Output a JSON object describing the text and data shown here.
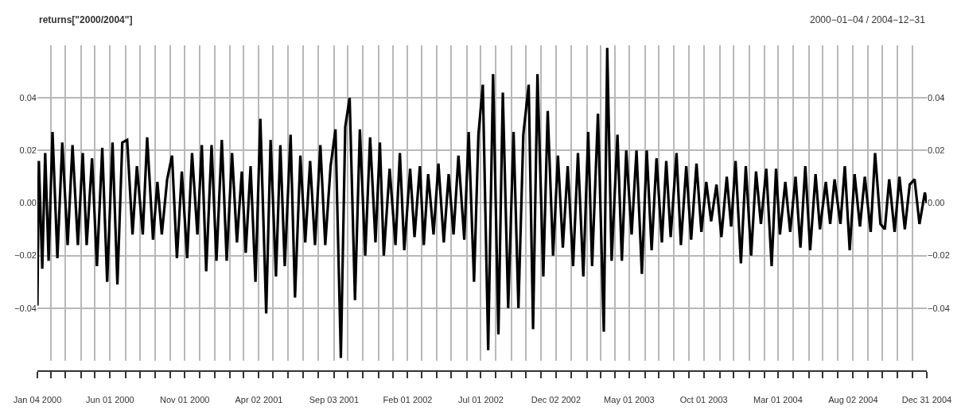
{
  "chart_data": {
    "type": "line",
    "title": "returns[\"2000/2004\"]",
    "subtitle": "2000−01−04 / 2004−12−31",
    "x": [
      "2000-01-04",
      "2000-01-07",
      "2000-01-14",
      "2000-01-20",
      "2000-01-27",
      "2000-02-04",
      "2000-02-14",
      "2000-02-24",
      "2000-03-06",
      "2000-03-16",
      "2000-03-27",
      "2000-04-06",
      "2000-04-14",
      "2000-04-25",
      "2000-05-05",
      "2000-05-16",
      "2000-05-26",
      "2000-06-06",
      "2000-06-16",
      "2000-06-26",
      "2000-07-06",
      "2000-07-17",
      "2000-07-26",
      "2000-08-07",
      "2000-08-16",
      "2000-08-28",
      "2000-09-06",
      "2000-09-15",
      "2000-09-26",
      "2000-10-06",
      "2000-10-16",
      "2000-10-26",
      "2000-11-06",
      "2000-11-16",
      "2000-11-27",
      "2000-12-06",
      "2000-12-15",
      "2000-12-26",
      "2001-01-05",
      "2001-01-16",
      "2001-01-26",
      "2001-02-06",
      "2001-02-16",
      "2001-02-26",
      "2001-03-06",
      "2001-03-16",
      "2001-03-26",
      "2001-04-05",
      "2001-04-17",
      "2001-04-26",
      "2001-05-07",
      "2001-05-16",
      "2001-05-25",
      "2001-06-06",
      "2001-06-15",
      "2001-06-26",
      "2001-07-06",
      "2001-07-16",
      "2001-07-26",
      "2001-08-06",
      "2001-08-16",
      "2001-08-27",
      "2001-09-06",
      "2001-09-17",
      "2001-09-26",
      "2001-10-05",
      "2001-10-16",
      "2001-10-26",
      "2001-11-06",
      "2001-11-16",
      "2001-11-27",
      "2001-12-06",
      "2001-12-14",
      "2001-12-26",
      "2002-01-07",
      "2002-01-16",
      "2002-01-25",
      "2002-02-06",
      "2002-02-15",
      "2002-02-26",
      "2002-03-06",
      "2002-03-15",
      "2002-03-26",
      "2002-04-05",
      "2002-04-16",
      "2002-04-26",
      "2002-05-06",
      "2002-05-16",
      "2002-05-28",
      "2002-06-06",
      "2002-06-17",
      "2002-06-26",
      "2002-07-05",
      "2002-07-16",
      "2002-07-26",
      "2002-08-06",
      "2002-08-15",
      "2002-08-26",
      "2002-09-06",
      "2002-09-16",
      "2002-09-26",
      "2002-10-07",
      "2002-10-16",
      "2002-10-25",
      "2002-11-06",
      "2002-11-15",
      "2002-11-26",
      "2002-12-06",
      "2002-12-16",
      "2002-12-26",
      "2003-01-06",
      "2003-01-16",
      "2003-01-27",
      "2003-02-06",
      "2003-02-14",
      "2003-02-26",
      "2003-03-10",
      "2003-03-17",
      "2003-03-26",
      "2003-04-07",
      "2003-04-16",
      "2003-04-25",
      "2003-05-06",
      "2003-05-16",
      "2003-05-27",
      "2003-06-06",
      "2003-06-16",
      "2003-06-26",
      "2003-07-07",
      "2003-07-16",
      "2003-07-25",
      "2003-08-06",
      "2003-08-15",
      "2003-08-26",
      "2003-09-05",
      "2003-09-16",
      "2003-09-26",
      "2003-10-06",
      "2003-10-16",
      "2003-10-27",
      "2003-11-06",
      "2003-11-17",
      "2003-11-26",
      "2003-12-05",
      "2003-12-16",
      "2003-12-26",
      "2004-01-06",
      "2004-01-16",
      "2004-01-26",
      "2004-02-06",
      "2004-02-17",
      "2004-02-26",
      "2004-03-05",
      "2004-03-16",
      "2004-03-26",
      "2004-04-06",
      "2004-04-16",
      "2004-04-26",
      "2004-05-06",
      "2004-05-17",
      "2004-05-26",
      "2004-06-07",
      "2004-06-16",
      "2004-06-25",
      "2004-07-07",
      "2004-07-16",
      "2004-07-26",
      "2004-08-05",
      "2004-08-16",
      "2004-08-26",
      "2004-09-07",
      "2004-09-16",
      "2004-09-27",
      "2004-10-06",
      "2004-10-15",
      "2004-10-26",
      "2004-11-05",
      "2004-11-16",
      "2004-11-26",
      "2004-12-06",
      "2004-12-16",
      "2004-12-27",
      "2004-12-31"
    ],
    "series": [
      {
        "color": "#000000",
        "values": [
          -0.039,
          0.016,
          -0.025,
          0.019,
          -0.022,
          0.027,
          -0.021,
          0.023,
          -0.016,
          0.022,
          -0.016,
          0.019,
          -0.016,
          0.017,
          -0.024,
          0.021,
          -0.03,
          0.023,
          -0.031,
          0.023,
          0.024,
          -0.012,
          0.014,
          -0.012,
          0.025,
          -0.014,
          0.008,
          -0.012,
          0.009,
          0.018,
          -0.021,
          0.012,
          -0.021,
          0.019,
          -0.012,
          0.022,
          -0.026,
          0.022,
          -0.022,
          0.024,
          -0.022,
          0.019,
          -0.015,
          0.012,
          -0.019,
          0.014,
          -0.03,
          0.032,
          -0.042,
          0.024,
          -0.028,
          0.022,
          -0.024,
          0.026,
          -0.036,
          0.018,
          -0.015,
          0.016,
          -0.016,
          0.022,
          -0.016,
          0.014,
          0.028,
          -0.059,
          0.029,
          0.04,
          -0.037,
          0.028,
          -0.02,
          0.025,
          -0.015,
          0.023,
          -0.02,
          0.013,
          -0.016,
          0.019,
          -0.018,
          0.013,
          -0.013,
          0.014,
          -0.016,
          0.011,
          -0.012,
          0.015,
          -0.015,
          0.011,
          -0.012,
          0.018,
          -0.014,
          0.027,
          -0.03,
          0.026,
          0.045,
          -0.056,
          0.049,
          -0.05,
          0.042,
          -0.04,
          0.027,
          -0.04,
          0.026,
          0.045,
          -0.048,
          0.049,
          -0.028,
          0.035,
          -0.02,
          0.018,
          -0.017,
          0.014,
          -0.024,
          0.019,
          -0.028,
          0.027,
          -0.024,
          0.034,
          -0.049,
          0.059,
          -0.022,
          0.026,
          -0.022,
          0.02,
          -0.012,
          0.02,
          -0.027,
          0.02,
          -0.018,
          0.017,
          -0.015,
          0.016,
          -0.013,
          0.019,
          -0.016,
          0.014,
          -0.014,
          0.015,
          -0.011,
          0.008,
          -0.007,
          0.007,
          -0.013,
          0.01,
          -0.009,
          0.016,
          -0.023,
          0.014,
          -0.02,
          0.012,
          -0.008,
          0.013,
          -0.024,
          0.013,
          -0.012,
          0.008,
          -0.011,
          0.01,
          -0.017,
          0.014,
          -0.018,
          0.011,
          -0.01,
          0.008,
          -0.008,
          0.009,
          -0.008,
          0.014,
          -0.018,
          0.011,
          -0.009,
          0.01,
          -0.011,
          0.019,
          -0.008,
          -0.01,
          0.009,
          -0.011,
          0.01,
          -0.01,
          0.007,
          0.009,
          -0.008,
          0.004,
          0.0
        ]
      }
    ],
    "ylim": [
      -0.06,
      0.06
    ],
    "yticks": [
      {
        "value": -0.04,
        "label": "−0.04"
      },
      {
        "value": -0.02,
        "label": "−0.02"
      },
      {
        "value": 0,
        "label": "0.00"
      },
      {
        "value": 0.02,
        "label": "0.02"
      },
      {
        "value": 0.04,
        "label": "0.04"
      }
    ],
    "y2lim": [
      -0.06,
      0.06
    ],
    "y2ticks": [
      {
        "value": -0.04,
        "label": "−0.04"
      },
      {
        "value": -0.02,
        "label": "−0.02"
      },
      {
        "value": 0,
        "label": "0.00"
      },
      {
        "value": 0.02,
        "label": "0.02"
      },
      {
        "value": 0.04,
        "label": "0.04"
      }
    ],
    "xlim": [
      "2000-01-04",
      "2004-12-31"
    ],
    "xticks": [
      {
        "value": "2000-01-04",
        "label": "Jan 04 2000"
      },
      {
        "value": "2000-02-01",
        "label": null
      },
      {
        "value": "2000-03-01",
        "label": null
      },
      {
        "value": "2000-04-03",
        "label": null
      },
      {
        "value": "2000-05-01",
        "label": null
      },
      {
        "value": "2000-06-01",
        "label": "Jun 01 2000"
      },
      {
        "value": "2000-07-03",
        "label": null
      },
      {
        "value": "2000-08-01",
        "label": null
      },
      {
        "value": "2000-09-01",
        "label": null
      },
      {
        "value": "2000-10-02",
        "label": null
      },
      {
        "value": "2000-11-01",
        "label": "Nov 01 2000"
      },
      {
        "value": "2000-12-01",
        "label": null
      },
      {
        "value": "2001-01-02",
        "label": null
      },
      {
        "value": "2001-02-01",
        "label": null
      },
      {
        "value": "2001-03-01",
        "label": null
      },
      {
        "value": "2001-04-02",
        "label": "Apr 02 2001"
      },
      {
        "value": "2001-05-01",
        "label": null
      },
      {
        "value": "2001-06-01",
        "label": null
      },
      {
        "value": "2001-07-02",
        "label": null
      },
      {
        "value": "2001-08-01",
        "label": null
      },
      {
        "value": "2001-09-03",
        "label": "Sep 03 2001"
      },
      {
        "value": "2001-10-01",
        "label": null
      },
      {
        "value": "2001-11-01",
        "label": null
      },
      {
        "value": "2001-12-03",
        "label": null
      },
      {
        "value": "2002-01-02",
        "label": null
      },
      {
        "value": "2002-02-01",
        "label": "Feb 01 2002"
      },
      {
        "value": "2002-03-01",
        "label": null
      },
      {
        "value": "2002-04-01",
        "label": null
      },
      {
        "value": "2002-05-01",
        "label": null
      },
      {
        "value": "2002-06-03",
        "label": null
      },
      {
        "value": "2002-07-01",
        "label": "Jul 01 2002"
      },
      {
        "value": "2002-08-01",
        "label": null
      },
      {
        "value": "2002-09-02",
        "label": null
      },
      {
        "value": "2002-10-01",
        "label": null
      },
      {
        "value": "2002-11-01",
        "label": null
      },
      {
        "value": "2002-12-02",
        "label": "Dec 02 2002"
      },
      {
        "value": "2003-01-02",
        "label": null
      },
      {
        "value": "2003-02-03",
        "label": null
      },
      {
        "value": "2003-03-03",
        "label": null
      },
      {
        "value": "2003-04-01",
        "label": null
      },
      {
        "value": "2003-05-01",
        "label": "May 01 2003"
      },
      {
        "value": "2003-06-02",
        "label": null
      },
      {
        "value": "2003-07-01",
        "label": null
      },
      {
        "value": "2003-08-01",
        "label": null
      },
      {
        "value": "2003-09-01",
        "label": null
      },
      {
        "value": "2003-10-01",
        "label": "Oct 01 2003"
      },
      {
        "value": "2003-11-03",
        "label": null
      },
      {
        "value": "2003-12-01",
        "label": null
      },
      {
        "value": "2004-01-02",
        "label": null
      },
      {
        "value": "2004-02-02",
        "label": null
      },
      {
        "value": "2004-03-01",
        "label": "Mar 01 2004"
      },
      {
        "value": "2004-04-01",
        "label": null
      },
      {
        "value": "2004-05-03",
        "label": null
      },
      {
        "value": "2004-06-01",
        "label": null
      },
      {
        "value": "2004-07-01",
        "label": null
      },
      {
        "value": "2004-08-02",
        "label": "Aug 02 2004"
      },
      {
        "value": "2004-09-01",
        "label": null
      },
      {
        "value": "2004-10-01",
        "label": null
      },
      {
        "value": "2004-11-01",
        "label": null
      },
      {
        "value": "2004-12-01",
        "label": null
      },
      {
        "value": "2004-12-31",
        "label": "Dec 31 2004"
      }
    ],
    "grid": true,
    "marker": "none",
    "line_style": "solid"
  }
}
